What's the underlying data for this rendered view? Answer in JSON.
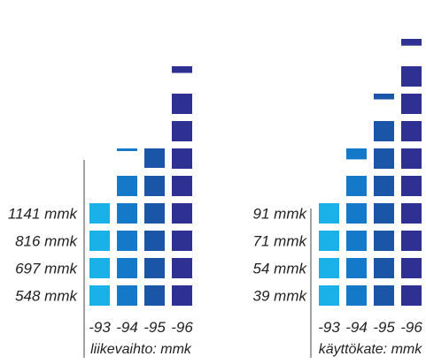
{
  "chart_data": [
    {
      "type": "bar",
      "categories": [
        "-93",
        "-94",
        "-95",
        "-96"
      ],
      "values": [
        548,
        697,
        816,
        1141
      ],
      "xlabel": "liikevaihto: mmk",
      "value_labels": [
        "548 mmk",
        "697 mmk",
        "816 mmk",
        "1141 mmk"
      ],
      "series_colors": [
        "#1ab1e8",
        "#1479c8",
        "#1a55a8",
        "#2e3192"
      ]
    },
    {
      "type": "bar",
      "categories": [
        "-93",
        "-94",
        "-95",
        "-96"
      ],
      "values": [
        39,
        54,
        71,
        91
      ],
      "xlabel": "käyttökate: mmk",
      "value_labels": [
        "39 mmk",
        "54 mmk",
        "71 mmk",
        "91 mmk"
      ],
      "series_colors": [
        "#1ab1e8",
        "#1479c8",
        "#1a55a8",
        "#2e3192"
      ]
    }
  ]
}
